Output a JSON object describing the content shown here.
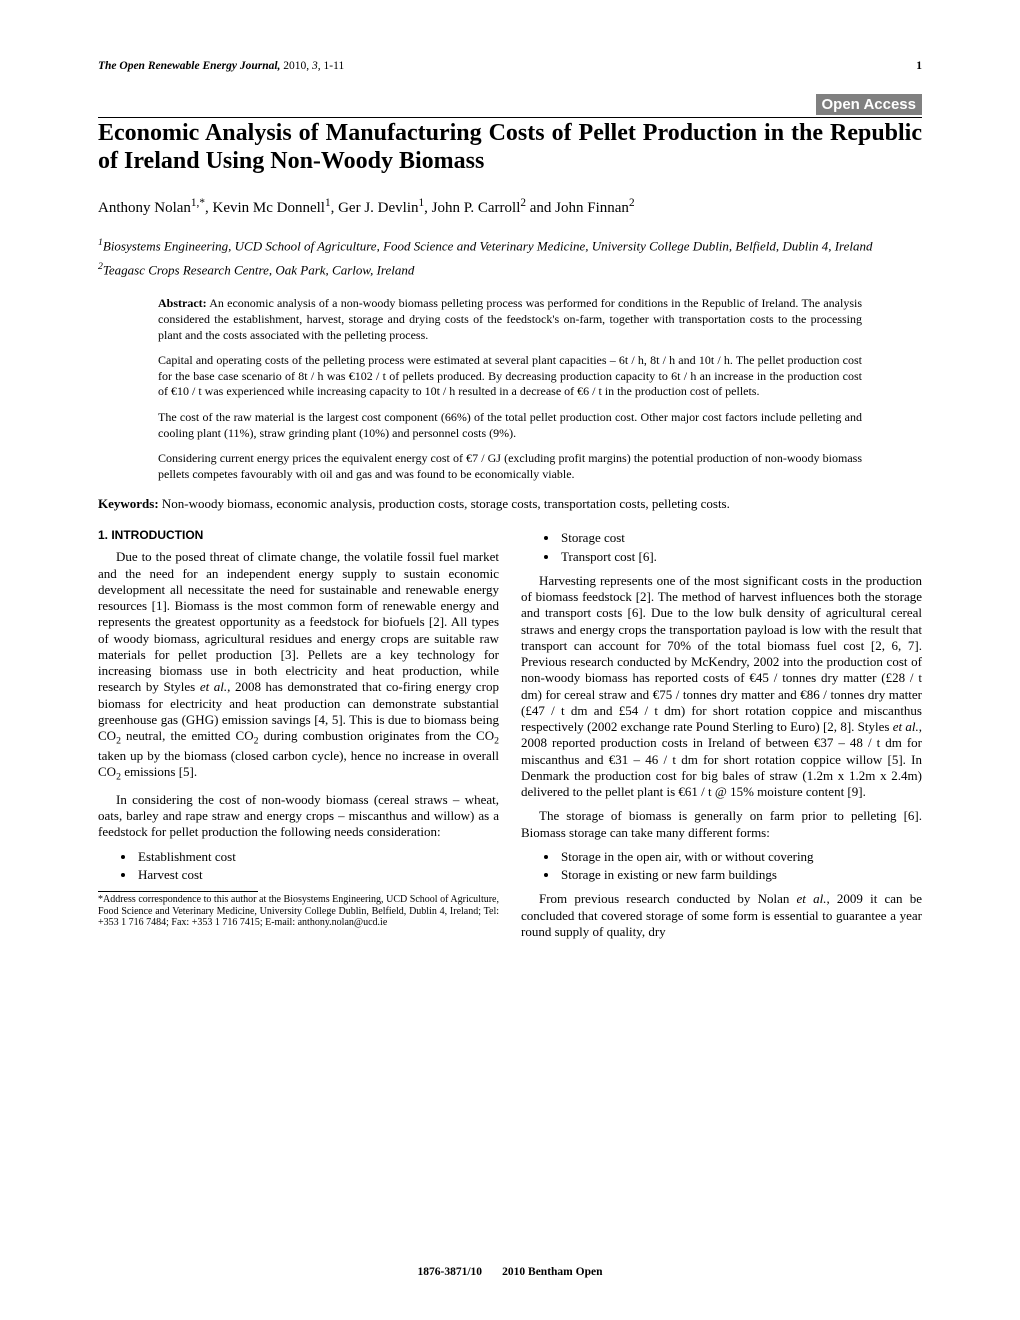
{
  "header": {
    "journal": "The Open Renewable Energy Journal,",
    "year": "2010,",
    "volume": "3,",
    "pages": "1-11",
    "pagenum": "1"
  },
  "open_access_label": "Open Access",
  "title": "Economic Analysis of Manufacturing Costs of Pellet Production in the Republic of Ireland Using Non-Woody Biomass",
  "authors_html": "Anthony Nolan<sup>1,*</sup>, Kevin Mc Donnell<sup>1</sup>, Ger J. Devlin<sup>1</sup>, John P. Carroll<sup>2</sup> and John Finnan<sup>2</sup>",
  "affiliations": [
    "<sup>1</sup>Biosystems Engineering, UCD School of Agriculture, Food Science and Veterinary Medicine, University College Dublin, Belfield, Dublin 4, Ireland",
    "<sup>2</sup>Teagasc Crops Research Centre, Oak Park, Carlow, Ireland"
  ],
  "abstract": {
    "label": "Abstract:",
    "paragraphs": [
      "An economic analysis of a non-woody biomass pelleting process was performed for conditions in the Republic of Ireland. The analysis considered the establishment, harvest, storage and drying costs of the feedstock's on-farm, together with transportation costs to the processing plant and the costs associated with the pelleting process.",
      "Capital and operating costs of the pelleting process were estimated at several plant capacities – 6t / h, 8t / h and 10t / h. The pellet production cost for the base case scenario of 8t / h was €102 / t of pellets produced. By decreasing production capacity to 6t / h an increase in the production cost of €10 / t was experienced while increasing capacity to 10t / h resulted in a decrease of €6 / t in the production cost of pellets.",
      "The cost of the raw material is the largest cost component (66%) of the total pellet production cost. Other major cost factors include pelleting and cooling plant (11%), straw grinding plant (10%) and personnel costs (9%).",
      "Considering current energy prices the equivalent energy cost of €7 / GJ (excluding profit margins) the potential production of non-woody biomass pellets competes favourably with oil and gas and was found to be economically viable."
    ]
  },
  "keywords": {
    "label": "Keywords:",
    "text": "Non-woody biomass, economic analysis, production costs, storage costs, transportation costs, pelleting costs."
  },
  "left_col": {
    "section_heading": "1. INTRODUCTION",
    "p1": "Due to the posed threat of climate change, the volatile fossil fuel market and the need for an independent energy supply to sustain economic development all necessitate the need for sustainable and renewable energy resources [1]. Biomass is the most common form of renewable energy and represents the greatest opportunity as a feedstock for biofuels [2]. All types of woody biomass, agricultural residues and energy crops are suitable raw materials for pellet production [3]. Pellets are a key technology for increasing biomass use in both electricity and heat production, while research by Styles <i>et al.</i>, 2008 has demonstrated that co-firing energy crop biomass for electricity and heat production can demonstrate substantial greenhouse gas (GHG) emission savings [4, 5]. This is due to biomass being CO<sub>2</sub> neutral, the emitted CO<sub>2</sub> during combustion originates from the CO<sub>2</sub> taken up by the biomass (closed carbon cycle), hence no increase in overall CO<sub>2</sub> emissions [5].",
    "p2": "In considering the cost of non-woody biomass (cereal straws – wheat, oats, barley and rape straw and energy crops – miscanthus and willow) as a feedstock for pellet production the following needs consideration:",
    "bullets": [
      "Establishment cost",
      "Harvest cost"
    ],
    "footnote": "*Address correspondence to this author at the Biosystems Engineering, UCD School of Agriculture, Food Science and Veterinary Medicine, University College Dublin, Belfield, Dublin 4, Ireland; Tel: +353 1 716 7484; Fax: +353 1 716 7415; E-mail: anthony.nolan@ucd.ie"
  },
  "right_col": {
    "bullets1": [
      "Storage cost",
      "Transport cost [6]."
    ],
    "p1": "Harvesting represents one of the most significant costs in the production of biomass feedstock [2]. The method of harvest influences both the storage and transport costs [6]. Due to the low bulk density of agricultural cereal straws and energy crops the transportation payload is low with the result that transport can account for 70% of the total biomass fuel cost [2, 6, 7]. Previous research conducted by McKendry, 2002 into the production cost of non-woody biomass has reported costs of €45 / tonnes dry matter (£28 / t dm) for cereal straw and €75 / tonnes dry matter and €86 / tonnes dry matter (£47 / t dm and £54 / t dm) for short rotation coppice and miscanthus respectively (2002 exchange rate Pound Sterling to Euro) [2, 8]. Styles <i>et al.</i>, 2008 reported production costs in Ireland of between €37 – 48 / t dm for miscanthus and €31 – 46 / t dm for short rotation coppice willow [5]. In Denmark the production cost for big bales of straw (1.2m x 1.2m x 2.4m) delivered to the pellet plant is €61 / t @ 15% moisture content [9].",
    "p2": "The storage of biomass is generally on farm prior to pelleting [6]. Biomass storage can take many different forms:",
    "bullets2": [
      "Storage in the open air, with or without covering",
      "Storage in existing or new farm buildings"
    ],
    "p3": "From previous research conducted by Nolan <i>et al.</i>, 2009 it can be concluded that covered storage of some form is essential to guarantee a year round supply of quality, dry"
  },
  "footer": {
    "issn": "1876-3871/10",
    "publisher": "2010 Bentham Open"
  },
  "colors": {
    "text": "#000000",
    "background": "#ffffff",
    "open_access_bg": "#808080",
    "open_access_fg": "#ffffff"
  },
  "typography": {
    "body_font": "Times New Roman",
    "body_size_pt": 10,
    "title_size_pt": 18,
    "section_head_font": "Arial",
    "section_head_size_pt": 9
  }
}
